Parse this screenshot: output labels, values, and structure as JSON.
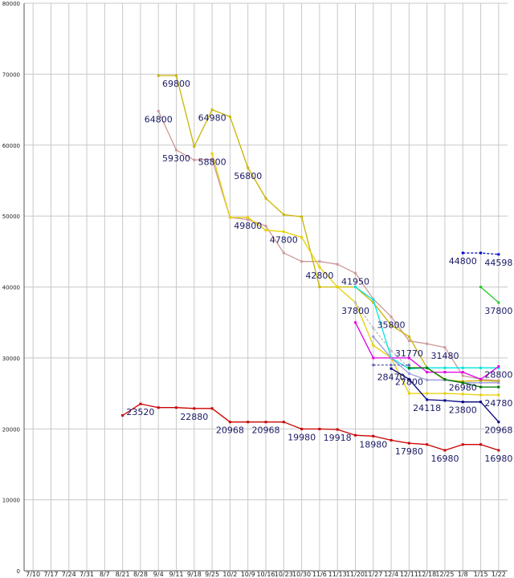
{
  "chart_data": {
    "type": "line",
    "title": "",
    "xlabel": "",
    "ylabel": "",
    "ylim": [
      0,
      80000
    ],
    "grid": true,
    "legend": "none",
    "y_ticks": [
      "0",
      "10000",
      "20000",
      "30000",
      "40000",
      "50000",
      "60000",
      "70000",
      "80000"
    ],
    "categories": [
      "7/10",
      "7/17",
      "7/24",
      "7/31",
      "8/7",
      "8/21",
      "8/28",
      "9/4",
      "9/11",
      "9/18",
      "9/25",
      "10/2",
      "10/9",
      "10/16",
      "10/23",
      "10/30",
      "11/6",
      "11/13",
      "11/20",
      "11/27",
      "12/4",
      "12/11",
      "12/18",
      "12/25",
      "1/8",
      "1/15",
      "1/22"
    ],
    "series": [
      {
        "color": "#cc9999",
        "style": "solid",
        "values": [
          null,
          null,
          null,
          null,
          null,
          null,
          null,
          null,
          null,
          null,
          null,
          null,
          null,
          null,
          null,
          null,
          null,
          null,
          null,
          null,
          null,
          null,
          null,
          null,
          null,
          null,
          null
        ],
        "points": [
          [
            7,
            64800
          ],
          [
            8,
            59300
          ],
          [
            9,
            57900
          ],
          [
            10,
            58000
          ],
          [
            11,
            49800
          ],
          [
            12,
            49500
          ],
          [
            13,
            48600
          ],
          [
            14,
            44800
          ],
          [
            15,
            43600
          ],
          [
            16,
            43600
          ],
          [
            17,
            43200
          ],
          [
            18,
            41950
          ],
          [
            19,
            38300
          ],
          [
            20,
            35800
          ],
          [
            21,
            32400
          ],
          [
            22,
            32000
          ],
          [
            23,
            31480
          ],
          [
            24,
            27500
          ],
          [
            25,
            27000
          ],
          [
            26,
            26800
          ]
        ]
      },
      {
        "color": "#c8b400",
        "style": "solid",
        "points": [
          [
            7,
            69800
          ],
          [
            8,
            69800
          ],
          [
            9,
            59800
          ],
          [
            10,
            64980
          ],
          [
            11,
            64000
          ],
          [
            12,
            56800
          ],
          [
            13,
            52500
          ],
          [
            14,
            50200
          ],
          [
            15,
            49900
          ],
          [
            16,
            40000
          ],
          [
            17,
            40000
          ],
          [
            18,
            40000
          ],
          [
            19,
            37800
          ],
          [
            20,
            34600
          ],
          [
            21,
            33000
          ],
          [
            22,
            28600
          ],
          [
            23,
            26900
          ],
          [
            24,
            26700
          ],
          [
            25,
            26800
          ],
          [
            26,
            26700
          ]
        ]
      },
      {
        "color": "#e8d000",
        "style": "solid",
        "points": [
          [
            10,
            58800
          ],
          [
            11,
            49800
          ],
          [
            12,
            49800
          ],
          [
            13,
            48000
          ],
          [
            14,
            47800
          ],
          [
            15,
            47000
          ],
          [
            16,
            42800
          ],
          [
            17,
            40000
          ],
          [
            18,
            37800
          ],
          [
            19,
            31770
          ],
          [
            20,
            30000
          ],
          [
            21,
            25000
          ],
          [
            22,
            25000
          ],
          [
            23,
            25000
          ],
          [
            24,
            24900
          ],
          [
            25,
            24780
          ],
          [
            26,
            24780
          ]
        ]
      },
      {
        "color": "#bbbbbb",
        "style": "dashed",
        "points": [
          [
            18,
            37800
          ],
          [
            19,
            34200
          ],
          [
            20,
            31000
          ],
          [
            21,
            28600
          ]
        ]
      },
      {
        "color": "#cc0000",
        "style": "solid",
        "points": [
          [
            5,
            21900
          ],
          [
            6,
            23520
          ],
          [
            7,
            23000
          ],
          [
            8,
            23000
          ],
          [
            9,
            22880
          ],
          [
            10,
            22880
          ],
          [
            11,
            20968
          ],
          [
            12,
            20968
          ],
          [
            13,
            20968
          ],
          [
            14,
            20968
          ],
          [
            15,
            19980
          ],
          [
            16,
            19980
          ],
          [
            17,
            19918
          ],
          [
            18,
            19100
          ],
          [
            19,
            18980
          ],
          [
            20,
            18400
          ],
          [
            21,
            17980
          ],
          [
            22,
            17800
          ],
          [
            23,
            16980
          ],
          [
            24,
            17800
          ],
          [
            25,
            17800
          ],
          [
            26,
            16980
          ]
        ]
      },
      {
        "color": "#00e5e5",
        "style": "solid",
        "points": [
          [
            18,
            40000
          ],
          [
            19,
            38200
          ],
          [
            20,
            30000
          ],
          [
            21,
            28470
          ],
          [
            22,
            28600
          ],
          [
            23,
            28600
          ],
          [
            24,
            28600
          ],
          [
            25,
            28600
          ],
          [
            26,
            28600
          ]
        ]
      },
      {
        "color": "#e000e0",
        "style": "solid",
        "points": [
          [
            18,
            35000
          ],
          [
            19,
            30000
          ],
          [
            20,
            30000
          ],
          [
            21,
            30000
          ],
          [
            22,
            28000
          ],
          [
            23,
            28000
          ],
          [
            24,
            28000
          ],
          [
            25,
            27000
          ],
          [
            26,
            28800
          ]
        ]
      },
      {
        "color": "#9999dd",
        "style": "solid",
        "points": [
          [
            19,
            33000
          ],
          [
            20,
            30000
          ],
          [
            21,
            27800
          ],
          [
            22,
            26900
          ],
          [
            23,
            26900
          ],
          [
            24,
            26500
          ],
          [
            25,
            26500
          ],
          [
            26,
            26500
          ]
        ]
      },
      {
        "color": "#6666bb",
        "style": "dashed",
        "points": [
          [
            19,
            29000
          ],
          [
            20,
            29000
          ],
          [
            21,
            29000
          ]
        ]
      },
      {
        "color": "#000080",
        "style": "solid",
        "points": [
          [
            20,
            28500
          ],
          [
            21,
            27000
          ],
          [
            22,
            24118
          ],
          [
            23,
            24000
          ],
          [
            24,
            23800
          ],
          [
            25,
            23800
          ],
          [
            26,
            20968
          ]
        ]
      },
      {
        "color": "#007700",
        "style": "solid",
        "points": [
          [
            21,
            28600
          ],
          [
            22,
            28600
          ],
          [
            23,
            26980
          ],
          [
            24,
            26500
          ],
          [
            25,
            25900
          ],
          [
            26,
            25900
          ]
        ]
      },
      {
        "color": "#0000cc",
        "style": "dashed",
        "points": [
          [
            24,
            44800
          ],
          [
            25,
            44800
          ],
          [
            26,
            44598
          ]
        ]
      },
      {
        "color": "#22cc22",
        "style": "solid",
        "points": [
          [
            25,
            40000
          ],
          [
            26,
            37800
          ]
        ]
      }
    ],
    "data_labels": [
      {
        "text": "69800",
        "x": 8,
        "y": 69800
      },
      {
        "text": "64800",
        "x": 7,
        "y": 64800
      },
      {
        "text": "64980",
        "x": 10,
        "y": 64980
      },
      {
        "text": "59300",
        "x": 8,
        "y": 59300
      },
      {
        "text": "58800",
        "x": 10,
        "y": 58800
      },
      {
        "text": "56800",
        "x": 12,
        "y": 56800
      },
      {
        "text": "49800",
        "x": 12,
        "y": 49800
      },
      {
        "text": "47800",
        "x": 14,
        "y": 47800
      },
      {
        "text": "42800",
        "x": 16,
        "y": 42800
      },
      {
        "text": "41950",
        "x": 18,
        "y": 41950
      },
      {
        "text": "37800",
        "x": 18,
        "y": 37800
      },
      {
        "text": "35800",
        "x": 20,
        "y": 35800
      },
      {
        "text": "31770",
        "x": 21,
        "y": 31770
      },
      {
        "text": "31480",
        "x": 23,
        "y": 31480
      },
      {
        "text": "28470",
        "x": 20,
        "y": 28470
      },
      {
        "text": "27800",
        "x": 21,
        "y": 27800
      },
      {
        "text": "26980",
        "x": 24,
        "y": 26980
      },
      {
        "text": "24118",
        "x": 22,
        "y": 24118
      },
      {
        "text": "23800",
        "x": 24,
        "y": 23800
      },
      {
        "text": "28800",
        "x": 26,
        "y": 28800
      },
      {
        "text": "24780",
        "x": 26,
        "y": 24780
      },
      {
        "text": "20968",
        "x": 26,
        "y": 20968
      },
      {
        "text": "44800",
        "x": 24,
        "y": 44800
      },
      {
        "text": "44598",
        "x": 26,
        "y": 44598
      },
      {
        "text": "37800",
        "x": 26,
        "y": 37800
      },
      {
        "text": "23520",
        "x": 6,
        "y": 23520
      },
      {
        "text": "22880",
        "x": 9,
        "y": 22880
      },
      {
        "text": "20968",
        "x": 11,
        "y": 20968
      },
      {
        "text": "20968",
        "x": 13,
        "y": 20968
      },
      {
        "text": "19980",
        "x": 15,
        "y": 19980
      },
      {
        "text": "19918",
        "x": 17,
        "y": 19918
      },
      {
        "text": "18980",
        "x": 19,
        "y": 18980
      },
      {
        "text": "17980",
        "x": 21,
        "y": 17980
      },
      {
        "text": "16980",
        "x": 23,
        "y": 16980
      },
      {
        "text": "16980",
        "x": 26,
        "y": 16980
      }
    ]
  }
}
